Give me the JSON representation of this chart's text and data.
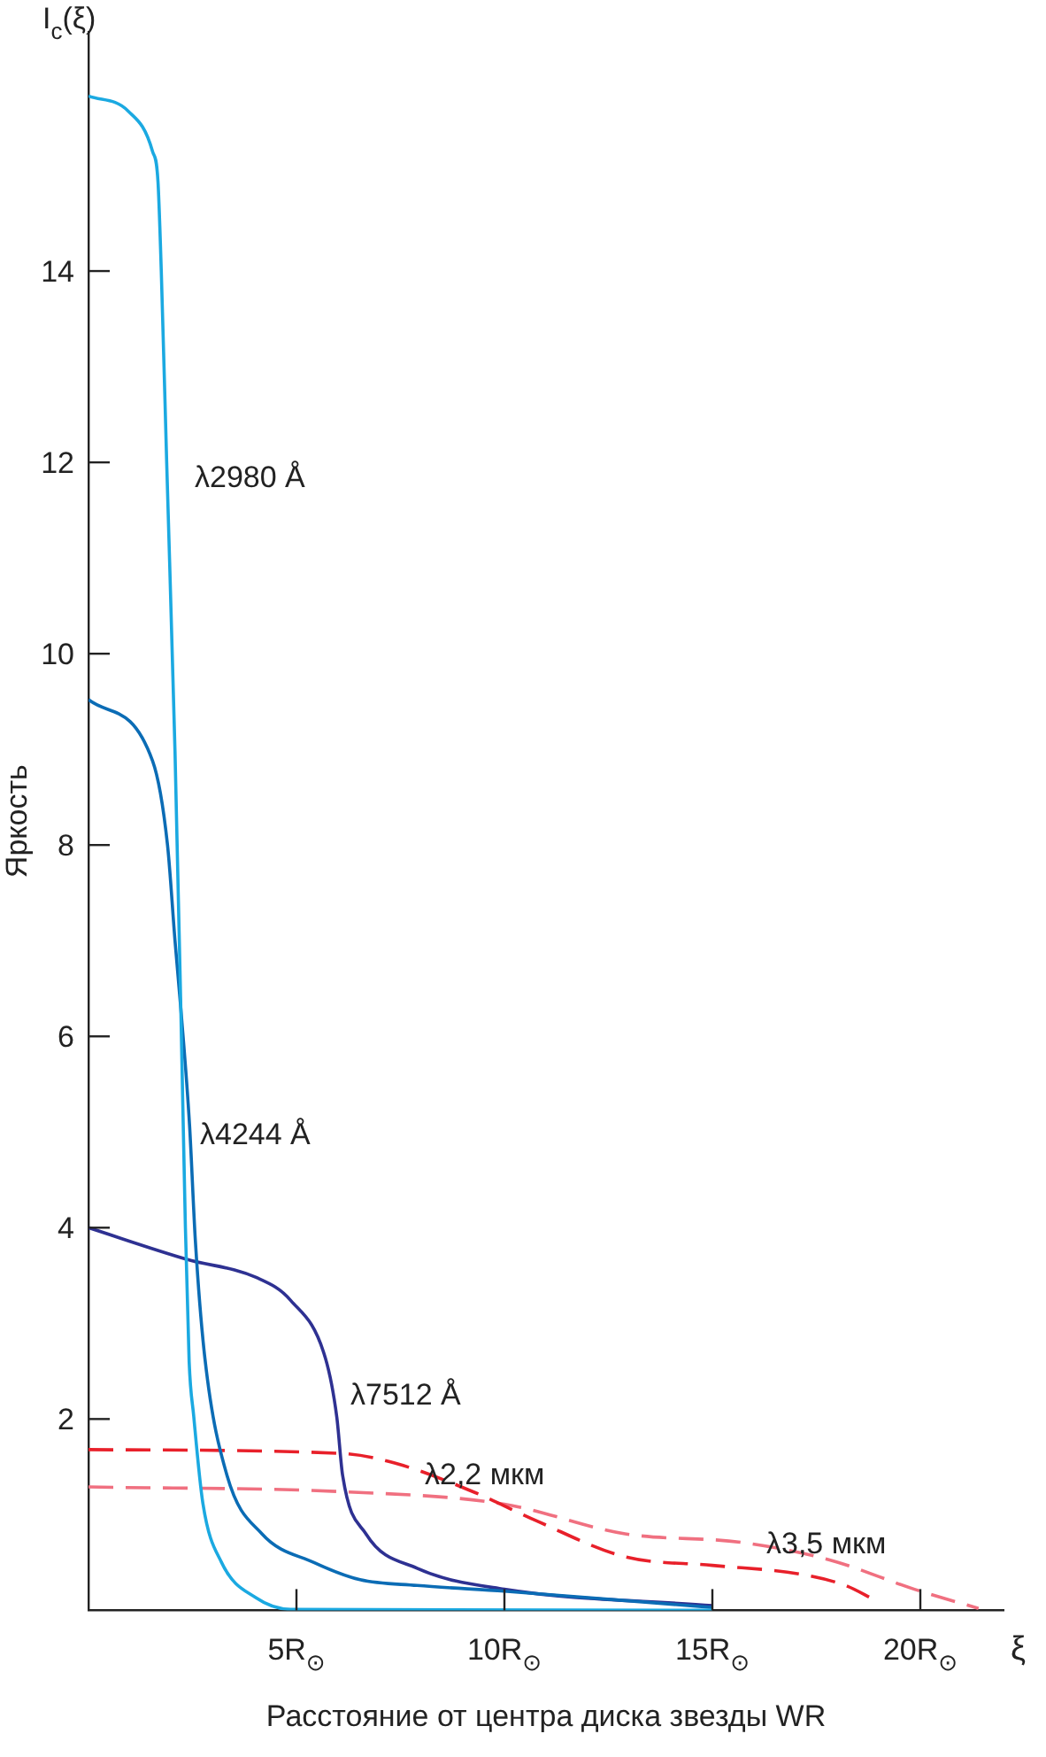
{
  "chart_data": {
    "type": "line",
    "xlabel": "Расстояние от центра диска звезды WR",
    "ylabel": "Яркость",
    "annotations": [
      "I$_{c}$(ξ)",
      "ξ"
    ],
    "xlim": [
      0,
      22
    ],
    "ylim": [
      0,
      16.5
    ],
    "xticks": [
      {
        "value": 5,
        "label": "5R$_{⊙}$"
      },
      {
        "value": 10,
        "label": "10R$_{⊙}$"
      },
      {
        "value": 15,
        "label": "15R$_{⊙}$"
      },
      {
        "value": 20,
        "label": "20R$_{⊙}$"
      }
    ],
    "yticks": [
      2,
      4,
      6,
      8,
      10,
      12,
      14
    ],
    "grid": false,
    "legend": false,
    "marker": "none",
    "line_style": "solid",
    "series": [
      {
        "name": "λ2980 Å",
        "color": "#1ba9e1",
        "x": [
          0,
          0.96,
          1.54,
          1.67,
          1.75,
          1.88,
          2.08,
          2.22,
          2.33,
          2.42,
          2.53,
          2.75,
          3.2,
          4.03,
          4.86,
          15
        ],
        "values": [
          15.83,
          15.67,
          15.25,
          14.94,
          14.0,
          12.0,
          8.98,
          6.29,
          4.0,
          2.6,
          2.03,
          1.12,
          0.5,
          0.13,
          0.01,
          0
        ]
      },
      {
        "name": "λ4244 Å",
        "color": "#0b6cb5",
        "x": [
          0,
          1.54,
          1.9,
          2.08,
          2.22,
          2.43,
          2.57,
          2.8,
          3.33,
          4.17,
          5.42,
          6.53,
          7.9,
          10,
          15
        ],
        "values": [
          9.52,
          8.88,
          8.0,
          7.0,
          6.29,
          5.07,
          3.86,
          2.63,
          1.41,
          0.8,
          0.5,
          0.32,
          0.26,
          0.2,
          0.03
        ]
      },
      {
        "name": "λ7512 Å",
        "color": "#2e3192",
        "x": [
          0,
          2.36,
          4.03,
          4.86,
          5.7,
          5.97,
          6.11,
          6.67,
          7.9,
          10,
          15
        ],
        "values": [
          4.0,
          3.67,
          3.48,
          3.24,
          2.63,
          2.02,
          1.41,
          0.8,
          0.44,
          0.22,
          0.05
        ]
      },
      {
        "name": "λ2,2 мкм",
        "color": "#e8202a",
        "line_style": "dashed",
        "x": [
          0,
          6.1,
          7.36,
          9.3,
          10.8,
          12.9,
          15,
          17.1,
          18.2,
          18.9
        ],
        "values": [
          1.68,
          1.64,
          1.54,
          1.23,
          0.93,
          0.56,
          0.47,
          0.38,
          0.26,
          0.11
        ]
      },
      {
        "name": "λ3,5 мкм",
        "color": "#f07080",
        "line_style": "dashed",
        "x": [
          0,
          6.1,
          10,
          12.9,
          15.7,
          17.8,
          19.86,
          21.4
        ],
        "values": [
          1.29,
          1.24,
          1.11,
          0.8,
          0.71,
          0.53,
          0.22,
          0.02
        ]
      }
    ]
  }
}
